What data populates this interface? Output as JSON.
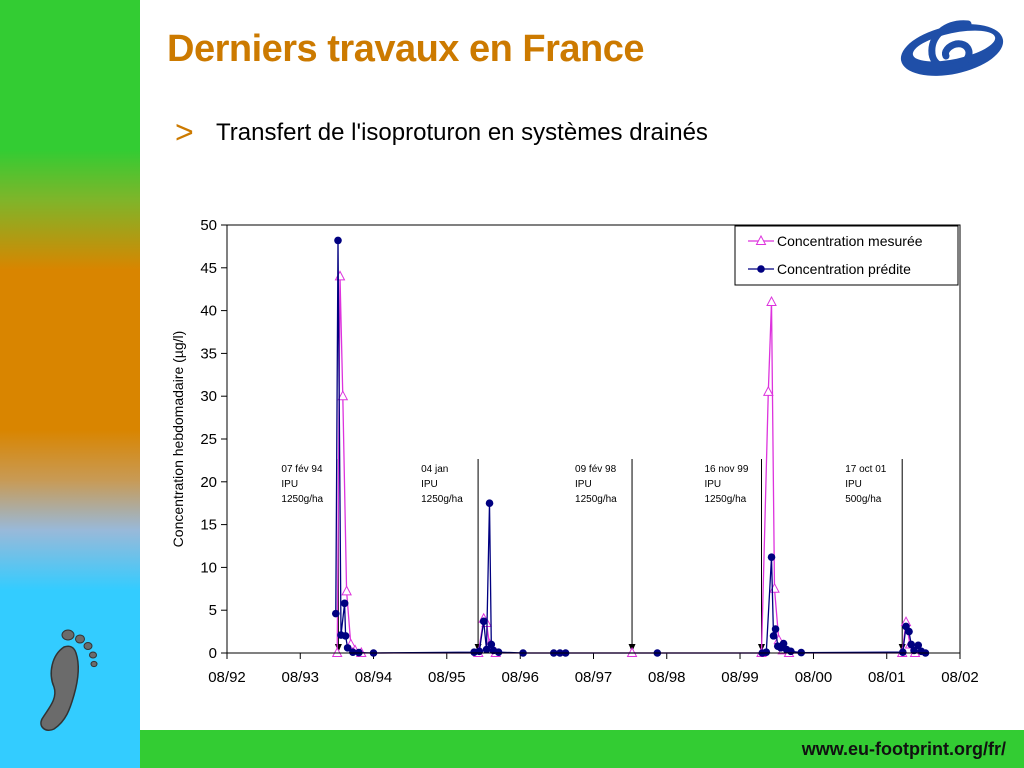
{
  "slide": {
    "title": "Derniers travaux en France",
    "bullet_symbol": ">",
    "subtitle": "Transfert de l'isoproturon en systèmes drainés",
    "footer_url": "www.eu-footprint.org/fr/"
  },
  "colors": {
    "title": "#cc7a00",
    "measured": "#dd33dd",
    "predicted": "#000080",
    "footer_band": "#33cc33"
  },
  "icons": {
    "left_logo": "footprint-icon",
    "top_logo": "fp6-logo-icon"
  },
  "chart_data": {
    "type": "line",
    "title": "",
    "xlabel": "",
    "ylabel": "Concentration hebdomadaire (µg/l)",
    "ylim": [
      0,
      50
    ],
    "yticks": [
      0,
      5,
      10,
      15,
      20,
      25,
      30,
      35,
      40,
      45,
      50
    ],
    "xlim": [
      "08/92",
      "08/02"
    ],
    "xticks": [
      "08/92",
      "08/93",
      "08/94",
      "08/95",
      "08/96",
      "08/97",
      "08/98",
      "08/99",
      "08/00",
      "08/01",
      "08/02"
    ],
    "grid": false,
    "legend_position": "top-right",
    "series": [
      {
        "name": "Concentration mesurée",
        "marker": "triangle",
        "points": [
          [
            "1994-02-01",
            0
          ],
          [
            "1994-02-15",
            44
          ],
          [
            "1994-03-01",
            30
          ],
          [
            "1994-03-20",
            7.2
          ],
          [
            "1994-04-10",
            1.0
          ],
          [
            "1994-05-01",
            0.3
          ],
          [
            "1994-06-01",
            0
          ],
          [
            "1996-01-05",
            0
          ],
          [
            "1996-02-01",
            4.0
          ],
          [
            "1996-02-15",
            3.5
          ],
          [
            "1996-03-01",
            1.0
          ],
          [
            "1996-04-01",
            0
          ],
          [
            "1998-02-09",
            0
          ],
          [
            "1999-11-16",
            0
          ],
          [
            "1999-12-20",
            30.5
          ],
          [
            "2000-01-05",
            41
          ],
          [
            "2000-01-20",
            7.5
          ],
          [
            "2000-02-10",
            1.5
          ],
          [
            "2000-03-01",
            0.3
          ],
          [
            "2000-04-01",
            0
          ],
          [
            "2001-10-17",
            0
          ],
          [
            "2001-11-05",
            3.6
          ],
          [
            "2001-11-25",
            1.0
          ],
          [
            "2001-12-20",
            0
          ]
        ]
      },
      {
        "name": "Concentration prédite",
        "marker": "circle",
        "points": [
          [
            "1994-01-25",
            4.6
          ],
          [
            "1994-02-05",
            48.2
          ],
          [
            "1994-02-20",
            2.1
          ],
          [
            "1994-03-10",
            5.8
          ],
          [
            "1994-03-15",
            2.0
          ],
          [
            "1994-03-25",
            0.6
          ],
          [
            "1994-04-20",
            0.1
          ],
          [
            "1994-05-20",
            0.05
          ],
          [
            "1994-08-01",
            0
          ],
          [
            "1995-12-15",
            0.1
          ],
          [
            "1996-01-10",
            0.2
          ],
          [
            "1996-02-01",
            3.7
          ],
          [
            "1996-02-15",
            0.4
          ],
          [
            "1996-03-01",
            17.5
          ],
          [
            "1996-03-10",
            1.0
          ],
          [
            "1996-03-20",
            0.3
          ],
          [
            "1996-04-15",
            0.1
          ],
          [
            "1996-08-15",
            0
          ],
          [
            "1997-01-15",
            0
          ],
          [
            "1997-02-15",
            0
          ],
          [
            "1997-03-15",
            0
          ],
          [
            "1998-06-15",
            0
          ],
          [
            "1999-11-20",
            0
          ],
          [
            "1999-12-10",
            0.1
          ],
          [
            "2000-01-05",
            11.2
          ],
          [
            "2000-01-15",
            2.0
          ],
          [
            "2000-01-25",
            2.8
          ],
          [
            "2000-02-05",
            0.8
          ],
          [
            "2000-02-20",
            0.6
          ],
          [
            "2000-03-05",
            1.1
          ],
          [
            "2000-03-20",
            0.4
          ],
          [
            "2000-04-10",
            0.2
          ],
          [
            "2000-06-01",
            0.05
          ],
          [
            "2001-10-20",
            0.1
          ],
          [
            "2001-11-05",
            3.1
          ],
          [
            "2001-11-20",
            2.5
          ],
          [
            "2001-12-01",
            1.0
          ],
          [
            "2001-12-15",
            0.3
          ],
          [
            "2002-01-05",
            0.9
          ],
          [
            "2002-01-20",
            0.2
          ],
          [
            "2002-02-10",
            0
          ]
        ]
      }
    ],
    "annotations": [
      {
        "date": "1994-02-07",
        "lines": [
          "07 fév 94",
          "IPU",
          "1250g/ha"
        ]
      },
      {
        "date": "1996-01-04",
        "lines": [
          "04 jan",
          "IPU",
          "1250g/ha"
        ]
      },
      {
        "date": "1998-02-09",
        "lines": [
          "09 fév 98",
          "IPU",
          "1250g/ha"
        ]
      },
      {
        "date": "1999-11-16",
        "lines": [
          "16 nov 99",
          "IPU",
          "1250g/ha"
        ]
      },
      {
        "date": "2001-10-17",
        "lines": [
          "17 oct 01",
          "IPU",
          "500g/ha"
        ]
      }
    ]
  }
}
